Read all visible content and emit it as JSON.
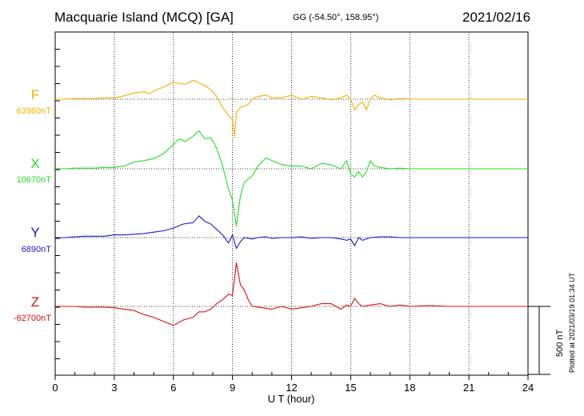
{
  "header": {
    "title": "Macquarie Island (MCQ)  [GA]",
    "coords": "GG (-54.50°, 158.95°)",
    "date": "2021/02/16",
    "plotted": "Plotted at 2021/03/19 01:34  UT",
    "scale_label": "500 nT"
  },
  "colors": {
    "F": "#f2b100",
    "X": "#22e022",
    "Y": "#1a1acc",
    "Z": "#e01010",
    "grid": "#000000"
  },
  "chart_data": {
    "type": "line",
    "xlabel": "U T (hour)",
    "xlim": [
      0,
      24
    ],
    "xticks": [
      "0",
      "3",
      "6",
      "9",
      "12",
      "15",
      "18",
      "21",
      "24"
    ],
    "scale_bar_nT": 500,
    "series": [
      {
        "name": "F",
        "baseline_label": "63980nT",
        "x": [
          0,
          0.5,
          1,
          1.5,
          2,
          2.5,
          3,
          3.5,
          4,
          4.5,
          4.8,
          5,
          5.5,
          6,
          6.3,
          6.6,
          7,
          7.3,
          7.6,
          7.9,
          8.2,
          8.5,
          8.8,
          9.0,
          9.1,
          9.2,
          9.4,
          9.6,
          9.8,
          10,
          10.3,
          10.7,
          11,
          11.5,
          12,
          12.5,
          13,
          13.5,
          14,
          14.5,
          14.8,
          15.0,
          15.2,
          15.4,
          15.6,
          15.8,
          16.0,
          16.2,
          16.5,
          17,
          17.5,
          18,
          19,
          20,
          21,
          22,
          23,
          24
        ],
        "y": [
          0,
          0,
          5,
          5,
          5,
          10,
          10,
          25,
          45,
          55,
          40,
          60,
          90,
          125,
          115,
          110,
          140,
          120,
          100,
          70,
          20,
          -60,
          -120,
          -150,
          -280,
          -100,
          -60,
          -50,
          -40,
          0,
          20,
          30,
          10,
          10,
          30,
          0,
          20,
          10,
          -5,
          10,
          30,
          0,
          -80,
          -40,
          -20,
          -80,
          5,
          30,
          10,
          -5,
          5,
          0,
          0,
          0,
          0,
          0,
          0,
          0
        ]
      },
      {
        "name": "X",
        "baseline_label": "10670nT",
        "x": [
          0,
          0.5,
          1,
          1.5,
          2,
          2.5,
          3,
          3.5,
          4,
          4.5,
          5,
          5.5,
          6,
          6.3,
          6.6,
          7,
          7.3,
          7.6,
          7.9,
          8.2,
          8.5,
          8.8,
          9.0,
          9.2,
          9.4,
          9.6,
          10,
          10.3,
          10.7,
          11,
          11.5,
          12,
          12.5,
          13,
          13.5,
          14,
          14.5,
          14.8,
          15.0,
          15.2,
          15.4,
          15.6,
          15.8,
          16.0,
          16.2,
          16.5,
          17,
          17.5,
          18,
          19,
          20,
          21,
          22,
          23,
          24
        ],
        "y": [
          0,
          0,
          5,
          5,
          5,
          10,
          10,
          20,
          50,
          60,
          75,
          110,
          180,
          220,
          200,
          240,
          280,
          220,
          230,
          150,
          20,
          -150,
          -230,
          -420,
          -200,
          -100,
          -50,
          20,
          80,
          60,
          30,
          20,
          20,
          0,
          40,
          30,
          0,
          60,
          -40,
          -60,
          -20,
          -60,
          -20,
          60,
          20,
          10,
          0,
          5,
          0,
          0,
          0,
          0,
          0,
          0,
          0
        ]
      },
      {
        "name": "Y",
        "baseline_label": "6890nT",
        "x": [
          0,
          0.5,
          1,
          1.5,
          2,
          2.5,
          3,
          3.5,
          4,
          4.5,
          5,
          5.5,
          6,
          6.5,
          7,
          7.3,
          7.6,
          7.9,
          8.2,
          8.5,
          8.8,
          9.0,
          9.2,
          9.4,
          9.6,
          10,
          10.3,
          10.7,
          11,
          11.5,
          12,
          12.5,
          13,
          13.5,
          14,
          14.5,
          14.8,
          15.0,
          15.2,
          15.4,
          15.6,
          16,
          16.5,
          17,
          17.5,
          18,
          19,
          20,
          21,
          22,
          23,
          24
        ],
        "y": [
          0,
          0,
          5,
          10,
          10,
          10,
          20,
          20,
          25,
          30,
          40,
          50,
          70,
          100,
          110,
          160,
          120,
          100,
          60,
          20,
          -40,
          20,
          -80,
          -30,
          0,
          -10,
          0,
          5,
          -5,
          0,
          0,
          5,
          -5,
          0,
          0,
          -10,
          -20,
          -10,
          -60,
          0,
          -20,
          0,
          5,
          5,
          0,
          0,
          0,
          0,
          0,
          0,
          0,
          0
        ]
      },
      {
        "name": "Z",
        "baseline_label": "-62700nT",
        "x": [
          0,
          0.5,
          1,
          1.5,
          2,
          2.5,
          3,
          3.5,
          4,
          4.5,
          5,
          5.5,
          6,
          6.5,
          7,
          7.3,
          7.6,
          7.9,
          8.2,
          8.5,
          8.8,
          9.0,
          9.2,
          9.4,
          9.6,
          9.8,
          10,
          10.5,
          11,
          11.5,
          12,
          12.5,
          13,
          13.5,
          14,
          14.5,
          14.8,
          15.0,
          15.2,
          15.4,
          15.6,
          16,
          16.5,
          17,
          17.5,
          18,
          19,
          20,
          21,
          22,
          23,
          24
        ],
        "y": [
          0,
          0,
          0,
          -5,
          -5,
          -5,
          -10,
          -20,
          -30,
          -60,
          -80,
          -110,
          -140,
          -100,
          -80,
          -40,
          -40,
          -20,
          20,
          50,
          90,
          80,
          320,
          160,
          120,
          50,
          0,
          -10,
          -20,
          0,
          -20,
          -10,
          0,
          20,
          20,
          -20,
          10,
          0,
          60,
          20,
          0,
          10,
          20,
          0,
          10,
          0,
          5,
          0,
          0,
          0,
          0,
          0
        ]
      }
    ]
  }
}
